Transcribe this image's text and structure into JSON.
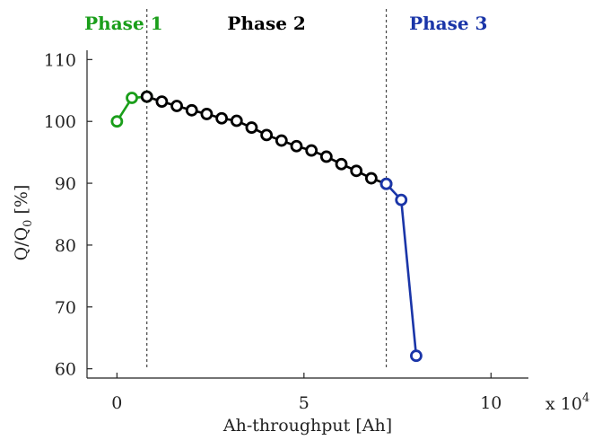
{
  "chart_data": {
    "type": "line",
    "title": "",
    "xlabel": "Ah-throughput [Ah]",
    "ylabel": "Q/Q",
    "ylabel_subscript": "0",
    "ylabel_unit": " [%]",
    "x_multiplier_text": "x 10",
    "x_multiplier_exponent": "4",
    "xlim": [
      -0.8,
      11.0
    ],
    "ylim": [
      58.5,
      111.5
    ],
    "xticks": [
      0,
      5,
      10
    ],
    "xtick_labels": [
      "0",
      "5",
      "10"
    ],
    "yticks": [
      60,
      70,
      80,
      90,
      100,
      110
    ],
    "ytick_labels": [
      "60",
      "70",
      "80",
      "90",
      "100",
      "110"
    ],
    "grid": false,
    "legend": "none",
    "marker": "circle-open",
    "phase_boundaries": [
      0.8,
      7.2
    ],
    "phases": [
      {
        "label": "Phase 1",
        "color": "#1a9e1a"
      },
      {
        "label": "Phase 2",
        "color": "#000000"
      },
      {
        "label": "Phase 3",
        "color": "#1a35a8"
      }
    ],
    "series": [
      {
        "color": "#1a9e1a",
        "x": [
          0,
          0.4,
          0.8
        ],
        "y": [
          100.0,
          103.8,
          104.0
        ]
      },
      {
        "color": "#000000",
        "x": [
          0.8,
          1.2,
          1.6,
          2.0,
          2.4,
          2.8,
          3.2,
          3.6,
          4.0,
          4.4,
          4.8,
          5.2,
          5.6,
          6.0,
          6.4,
          6.8,
          7.2
        ],
        "y": [
          104.0,
          103.2,
          102.5,
          101.8,
          101.2,
          100.5,
          100.1,
          99.0,
          97.8,
          96.9,
          96.0,
          95.3,
          94.3,
          93.1,
          92.0,
          90.8,
          89.9
        ]
      },
      {
        "color": "#1a35a8",
        "x": [
          7.2,
          7.6,
          8.0
        ],
        "y": [
          89.9,
          87.3,
          62.1
        ]
      }
    ]
  }
}
